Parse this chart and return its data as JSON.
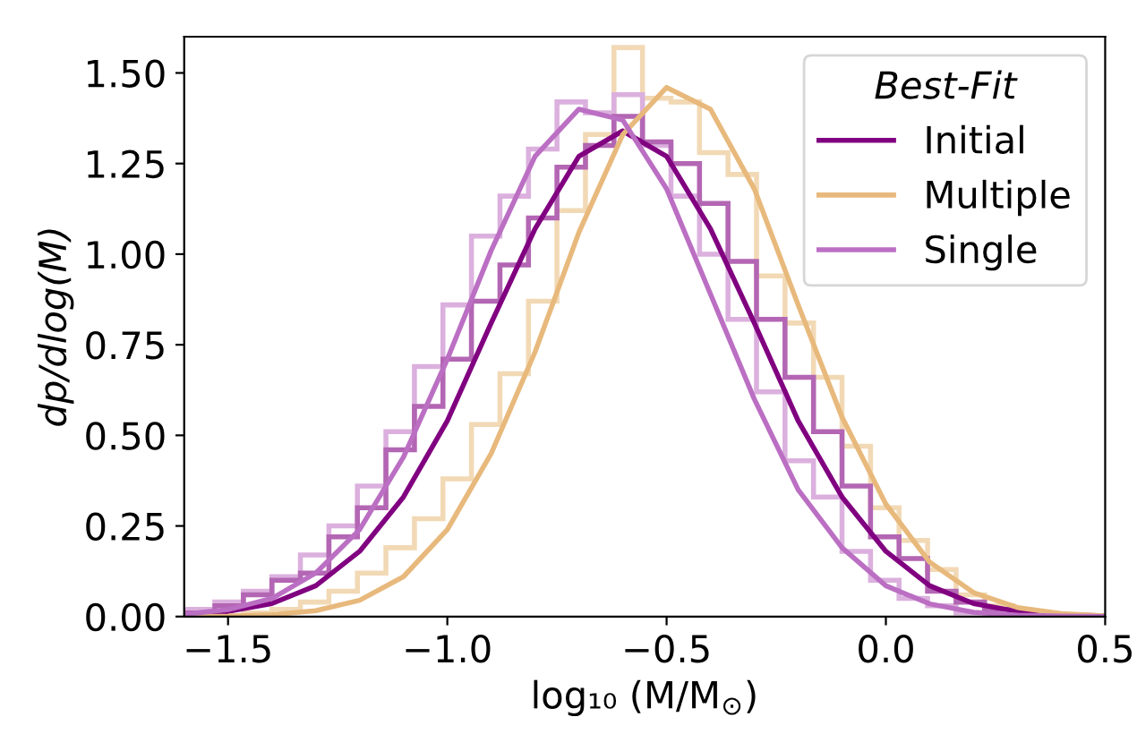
{
  "chart_data": {
    "type": "line",
    "xlabel": "log₁₀ (M/M$_{⊙}$)",
    "ylabel": "dp/dlog(M)",
    "legend_title": "Best-Fit",
    "xlim": [
      -1.6,
      0.5
    ],
    "ylim": [
      0,
      1.6
    ],
    "xticks": [
      {
        "value": -1.5,
        "label": "−1.5"
      },
      {
        "value": -1.0,
        "label": "−1.0"
      },
      {
        "value": -0.5,
        "label": "−0.5"
      },
      {
        "value": 0.0,
        "label": "0.0"
      },
      {
        "value": 0.5,
        "label": "0.5"
      }
    ],
    "yticks": [
      {
        "value": 0,
        "label": "0.00"
      },
      {
        "value": 0.25,
        "label": "0.25"
      },
      {
        "value": 0.5,
        "label": "0.50"
      },
      {
        "value": 0.75,
        "label": "0.75"
      },
      {
        "value": 1.0,
        "label": "1.00"
      },
      {
        "value": 1.25,
        "label": "1.25"
      },
      {
        "value": 1.5,
        "label": "1.50"
      }
    ],
    "grid": false,
    "legend": "top right",
    "marker": "none",
    "line_style": "solid",
    "series": [
      {
        "type": "histogram",
        "color": "#f2d9b5",
        "bins": [
          -1.595,
          -1.53,
          -1.465,
          -1.4,
          -1.335,
          -1.27,
          -1.205,
          -1.14,
          -1.075,
          -1.01,
          -0.945,
          -0.88,
          -0.815,
          -0.75,
          -0.685,
          -0.62,
          -0.555,
          -0.49,
          -0.425,
          -0.36,
          -0.295,
          -0.23,
          -0.165,
          -0.1,
          -0.035,
          0.03,
          0.095,
          0.16,
          0.225,
          0.29,
          0.355,
          0.42
        ],
        "values": [
          0,
          0,
          0.01,
          0.02,
          0.04,
          0.07,
          0.12,
          0.19,
          0.27,
          0.38,
          0.53,
          0.67,
          0.87,
          1.12,
          1.33,
          1.57,
          1.43,
          1.42,
          1.28,
          1.22,
          0.94,
          0.81,
          0.66,
          0.47,
          0.3,
          0.21,
          0.13,
          0.06,
          0.03,
          0.01,
          0
        ]
      },
      {
        "type": "histogram",
        "color": "#dbb0de",
        "bins": [
          -1.595,
          -1.53,
          -1.465,
          -1.4,
          -1.335,
          -1.27,
          -1.205,
          -1.14,
          -1.075,
          -1.01,
          -0.945,
          -0.88,
          -0.815,
          -0.75,
          -0.685,
          -0.62,
          -0.555,
          -0.49,
          -0.425,
          -0.36,
          -0.295,
          -0.23,
          -0.165,
          -0.1,
          -0.035,
          0.03,
          0.095,
          0.16,
          0.225,
          0.29,
          0.355,
          0.42
        ],
        "values": [
          0.02,
          0.04,
          0.07,
          0.11,
          0.17,
          0.25,
          0.36,
          0.51,
          0.69,
          0.86,
          1.05,
          1.16,
          1.29,
          1.42,
          1.39,
          1.44,
          1.3,
          1.16,
          1.0,
          0.82,
          0.62,
          0.43,
          0.33,
          0.18,
          0.1,
          0.05,
          0.03,
          0.01,
          0,
          0,
          0
        ]
      },
      {
        "type": "histogram",
        "color": "#b366b3",
        "bins": [
          -1.595,
          -1.53,
          -1.465,
          -1.4,
          -1.335,
          -1.27,
          -1.205,
          -1.14,
          -1.075,
          -1.01,
          -0.945,
          -0.88,
          -0.815,
          -0.75,
          -0.685,
          -0.62,
          -0.555,
          -0.49,
          -0.425,
          -0.36,
          -0.295,
          -0.23,
          -0.165,
          -0.1,
          -0.035,
          0.03,
          0.095,
          0.16,
          0.225,
          0.29,
          0.355,
          0.42
        ],
        "values": [
          0.01,
          0.03,
          0.06,
          0.1,
          0.12,
          0.22,
          0.3,
          0.46,
          0.58,
          0.71,
          0.87,
          0.97,
          1.1,
          1.24,
          1.3,
          1.38,
          1.31,
          1.25,
          1.14,
          0.98,
          0.82,
          0.66,
          0.51,
          0.36,
          0.22,
          0.16,
          0.07,
          0.04,
          0.02,
          0.01,
          0
        ]
      },
      {
        "name": "Initial",
        "color": "#800080",
        "x": [
          -1.6,
          -1.5,
          -1.4,
          -1.3,
          -1.2,
          -1.1,
          -1.0,
          -0.9,
          -0.8,
          -0.7,
          -0.6,
          -0.5,
          -0.4,
          -0.3,
          -0.2,
          -0.1,
          0.0,
          0.1,
          0.2,
          0.3,
          0.4,
          0.5
        ],
        "values": [
          0.005,
          0.014,
          0.036,
          0.085,
          0.18,
          0.33,
          0.54,
          0.81,
          1.07,
          1.27,
          1.34,
          1.27,
          1.07,
          0.81,
          0.54,
          0.33,
          0.18,
          0.085,
          0.036,
          0.014,
          0.005,
          0.002
        ]
      },
      {
        "name": "Multiple",
        "color": "#e8b97c",
        "x": [
          -1.6,
          -1.5,
          -1.4,
          -1.3,
          -1.2,
          -1.1,
          -1.0,
          -0.9,
          -0.8,
          -0.7,
          -0.6,
          -0.5,
          -0.4,
          -0.3,
          -0.2,
          -0.1,
          0.0,
          0.1,
          0.2,
          0.3,
          0.4,
          0.5
        ],
        "values": [
          0.0,
          0.001,
          0.005,
          0.016,
          0.045,
          0.11,
          0.24,
          0.45,
          0.73,
          1.06,
          1.33,
          1.46,
          1.4,
          1.18,
          0.86,
          0.55,
          0.31,
          0.15,
          0.066,
          0.025,
          0.008,
          0.002
        ]
      },
      {
        "name": "Single",
        "color": "#bb6fc3",
        "x": [
          -1.6,
          -1.5,
          -1.4,
          -1.3,
          -1.2,
          -1.1,
          -1.0,
          -0.9,
          -0.8,
          -0.7,
          -0.6,
          -0.5,
          -0.4,
          -0.3,
          -0.2,
          -0.1,
          0.0,
          0.1,
          0.2,
          0.3,
          0.4,
          0.5
        ],
        "values": [
          0.006,
          0.019,
          0.05,
          0.12,
          0.24,
          0.44,
          0.71,
          1.01,
          1.27,
          1.4,
          1.37,
          1.18,
          0.89,
          0.6,
          0.35,
          0.19,
          0.085,
          0.035,
          0.012,
          0.004,
          0.001,
          0.0
        ]
      }
    ]
  }
}
